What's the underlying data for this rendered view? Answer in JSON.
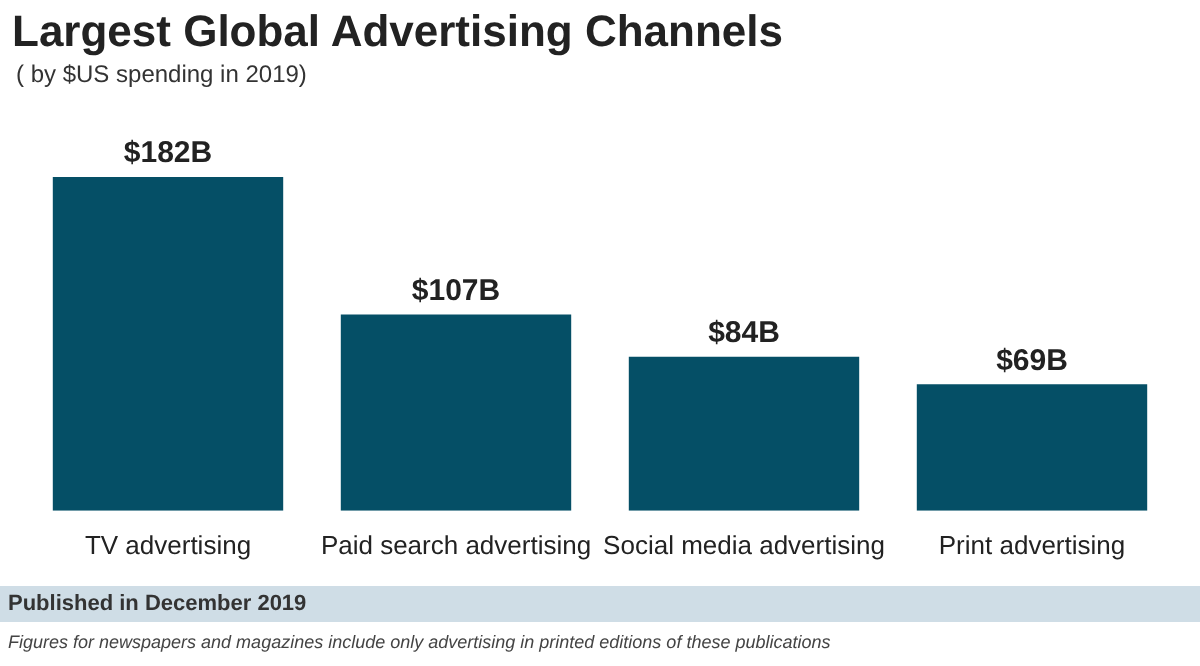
{
  "chart_data": {
    "type": "bar",
    "title": "Largest Global Advertising Channels",
    "subtitle": "( by $US spending in 2019)",
    "categories": [
      "TV advertising",
      "Paid search advertising",
      "Social media advertising",
      "Print advertising"
    ],
    "values": [
      182,
      107,
      84,
      69
    ],
    "value_labels": [
      "$182B",
      "$107B",
      "$84B",
      "$69B"
    ],
    "color": "#054f66",
    "grid": false,
    "legend": false,
    "tick_labels": "x",
    "annotations": [
      "Published in December 2019",
      "Figures for newspapers and magazines include only advertising in printed editions of these publications"
    ]
  }
}
